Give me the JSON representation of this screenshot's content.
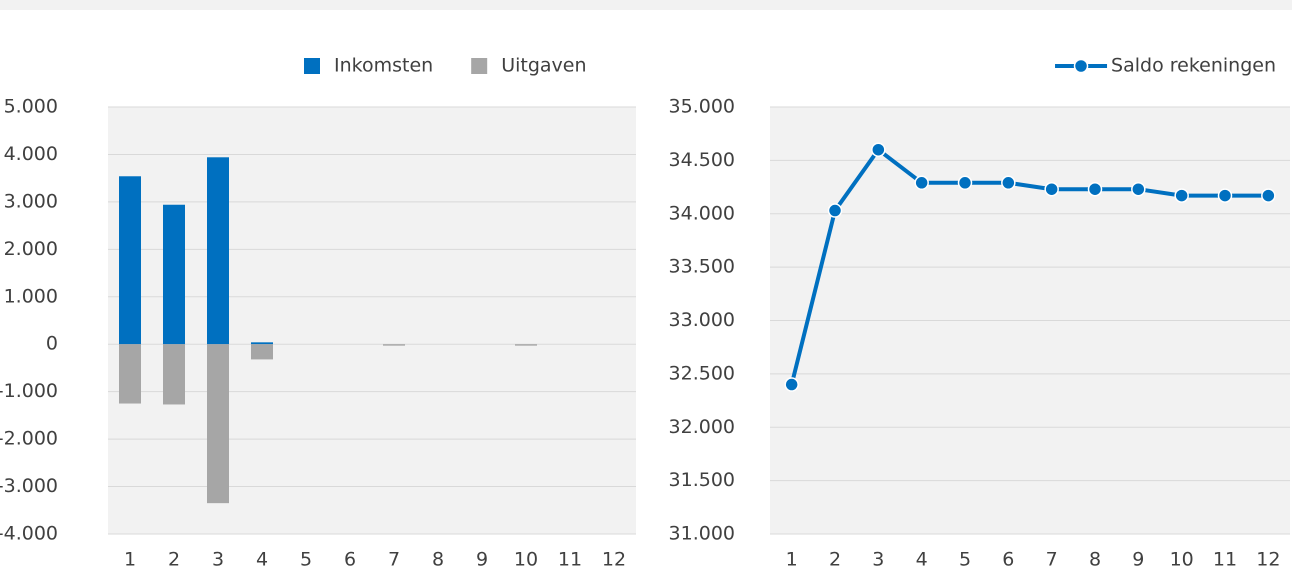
{
  "chart_data": [
    {
      "type": "bar",
      "stacked": true,
      "categories": [
        "1",
        "2",
        "3",
        "4",
        "5",
        "6",
        "7",
        "8",
        "9",
        "10",
        "11",
        "12"
      ],
      "series": [
        {
          "name": "Inkomsten",
          "color": "#0070c0",
          "values": [
            3540,
            2940,
            3940,
            40,
            0,
            0,
            0,
            0,
            0,
            0,
            0,
            0
          ]
        },
        {
          "name": "Uitgaven",
          "color": "#a6a6a6",
          "values": [
            -1250,
            -1270,
            -3350,
            -320,
            0,
            0,
            -30,
            0,
            0,
            -30,
            0,
            0
          ]
        }
      ],
      "ylim": [
        -4000,
        5000
      ],
      "yticks": [
        {
          "value": -4000,
          "label": "-4.000"
        },
        {
          "value": -3000,
          "label": "-3.000"
        },
        {
          "value": -2000,
          "label": "-2.000"
        },
        {
          "value": -1000,
          "label": "-1.000"
        },
        0,
        {
          "value": 1000,
          "label": "1.000"
        },
        {
          "value": 2000,
          "label": "2.000"
        },
        {
          "value": 3000,
          "label": "3.000"
        },
        {
          "value": 4000,
          "label": "4.000"
        },
        {
          "value": 5000,
          "label": "5.000"
        }
      ],
      "grid": true,
      "legend": "top"
    },
    {
      "type": "line",
      "categories": [
        "1",
        "2",
        "3",
        "4",
        "5",
        "6",
        "7",
        "8",
        "9",
        "10",
        "11",
        "12"
      ],
      "series": [
        {
          "name": "Saldo rekeningen",
          "color": "#0070c0",
          "values": [
            32400,
            34030,
            34600,
            34290,
            34290,
            34290,
            34230,
            34230,
            34230,
            34170,
            34170,
            34170
          ]
        }
      ],
      "ylim": [
        31000,
        35000
      ],
      "yticks": [
        {
          "value": 31000,
          "label": "31.000"
        },
        {
          "value": 31500,
          "label": "31.500"
        },
        {
          "value": 32000,
          "label": "32.000"
        },
        {
          "value": 32500,
          "label": "32.500"
        },
        {
          "value": 33000,
          "label": "33.000"
        },
        {
          "value": 33500,
          "label": "33.500"
        },
        {
          "value": 34000,
          "label": "34.000"
        },
        {
          "value": 34500,
          "label": "34.500"
        },
        {
          "value": 35000,
          "label": "35.000"
        }
      ],
      "grid": true,
      "legend": "top-right"
    }
  ]
}
